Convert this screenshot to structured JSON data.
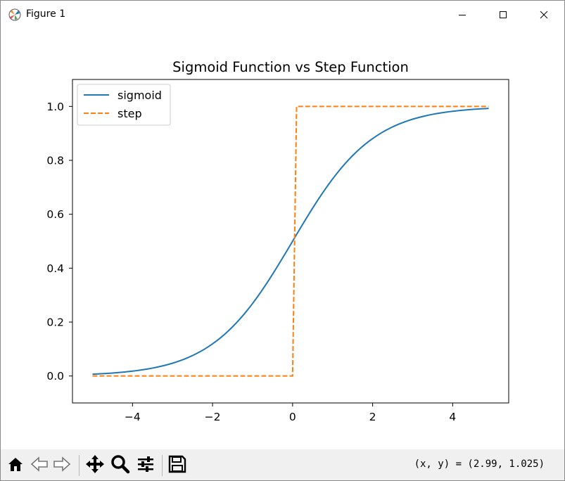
{
  "window": {
    "title": "Figure 1",
    "controls": {
      "minimize": "minimize",
      "maximize": "maximize",
      "close": "close"
    }
  },
  "icons": {
    "app": "matplotlib-figure-icon",
    "minimize": "minimize-icon",
    "maximize": "maximize-icon",
    "close": "close-icon"
  },
  "toolbar": {
    "tools": [
      "home",
      "back",
      "forward",
      "pan",
      "zoom",
      "configure-subplots",
      "save"
    ],
    "coords_text": "(x, y) = (2.99, 1.025)"
  },
  "chart_data": {
    "type": "line",
    "title": "Sigmoid Function vs Step Function",
    "xlabel": "",
    "ylabel": "",
    "xlim": [
      -5.5,
      5.4
    ],
    "ylim": [
      -0.1,
      1.1
    ],
    "xticks": [
      -4,
      -2,
      0,
      2,
      4
    ],
    "xtick_labels": [
      "−4",
      "−2",
      "0",
      "2",
      "4"
    ],
    "yticks": [
      0.0,
      0.2,
      0.4,
      0.6,
      0.8,
      1.0
    ],
    "ytick_labels": [
      "0.0",
      "0.2",
      "0.4",
      "0.6",
      "0.8",
      "1.0"
    ],
    "grid": false,
    "legend": "upper-left",
    "x_range": {
      "start": -5.0,
      "stop": 5.0,
      "step": 0.1
    },
    "series": [
      {
        "name": "sigmoid",
        "function": "1/(1+exp(-x))",
        "color": "#1f77b4",
        "linestyle": "solid"
      },
      {
        "name": "step",
        "function": "x > 0 ? 1 : 0",
        "color": "#ff7f0e",
        "linestyle": "dashed"
      }
    ]
  }
}
